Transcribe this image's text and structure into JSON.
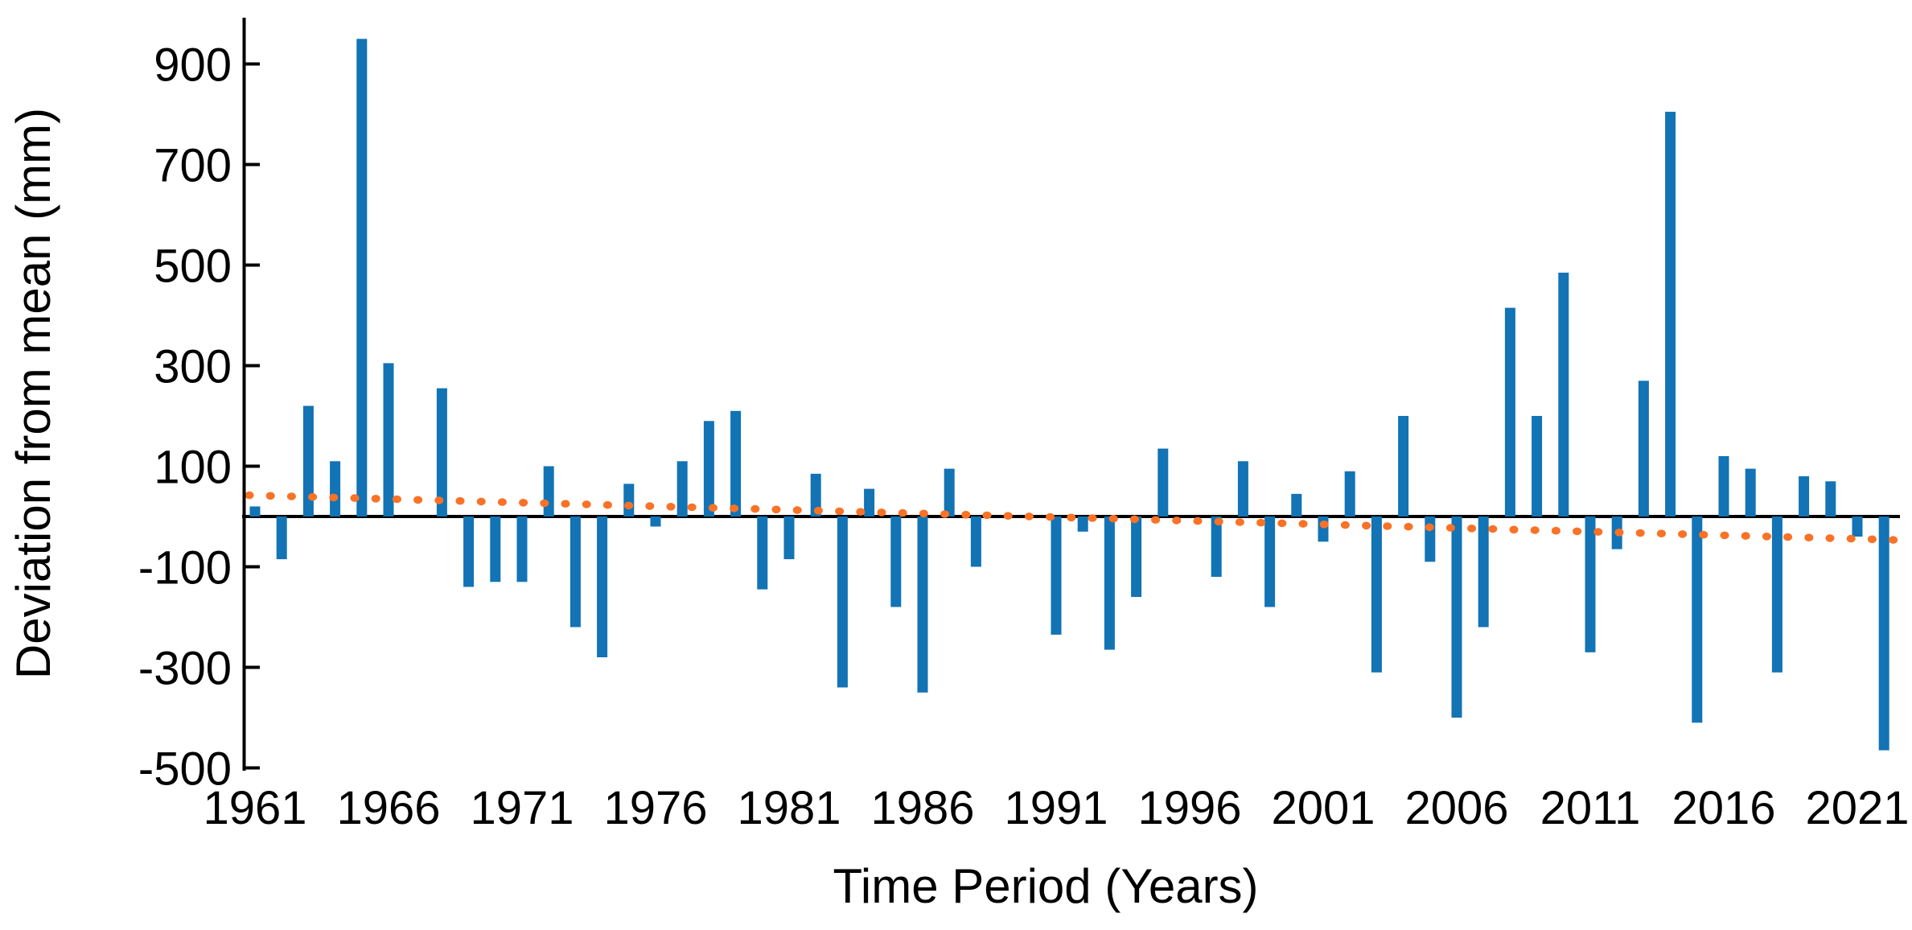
{
  "figure": {
    "background": "#ffffff"
  },
  "chart_data": {
    "type": "bar",
    "title": "",
    "xlabel": "Time Period (Years)",
    "ylabel": "Deviation from mean (mm)",
    "years": [
      1961,
      1962,
      1963,
      1964,
      1965,
      1966,
      1967,
      1968,
      1969,
      1970,
      1971,
      1972,
      1973,
      1974,
      1975,
      1976,
      1977,
      1978,
      1979,
      1980,
      1981,
      1982,
      1983,
      1984,
      1985,
      1986,
      1987,
      1988,
      1989,
      1990,
      1991,
      1992,
      1993,
      1994,
      1995,
      1996,
      1997,
      1998,
      1999,
      2000,
      2001,
      2002,
      2003,
      2004,
      2005,
      2006,
      2007,
      2008,
      2009,
      2010,
      2011,
      2012,
      2013,
      2014,
      2015,
      2016,
      2017,
      2018,
      2019,
      2020,
      2021,
      2022
    ],
    "values": [
      20,
      -85,
      220,
      110,
      950,
      305,
      0,
      255,
      -140,
      -130,
      -130,
      100,
      -220,
      -280,
      65,
      -20,
      110,
      190,
      210,
      -145,
      -85,
      85,
      -340,
      55,
      -180,
      -350,
      95,
      -100,
      0,
      0,
      -235,
      -30,
      -265,
      -160,
      135,
      0,
      -120,
      110,
      -180,
      45,
      -50,
      90,
      -310,
      200,
      -90,
      -400,
      -220,
      415,
      200,
      485,
      -270,
      -65,
      270,
      805,
      -410,
      120,
      95,
      -310,
      80,
      70,
      -40,
      -465
    ],
    "x_tick_labels": [
      "1961",
      "1966",
      "1971",
      "1976",
      "1981",
      "1986",
      "1991",
      "1996",
      "2001",
      "2006",
      "2011",
      "2016",
      "2021"
    ],
    "x_tick_step_years": 5,
    "y_ticks": [
      900,
      700,
      500,
      300,
      100,
      -100,
      -300,
      -500
    ],
    "ylim": [
      -502,
      992
    ],
    "grid": false,
    "legend": false,
    "bar_color": "#1273B5",
    "axis_color": "#000000",
    "trendline": {
      "style": "dotted",
      "color": "#F97226",
      "value_at_1961": 42,
      "value_at_2022": -46
    }
  }
}
